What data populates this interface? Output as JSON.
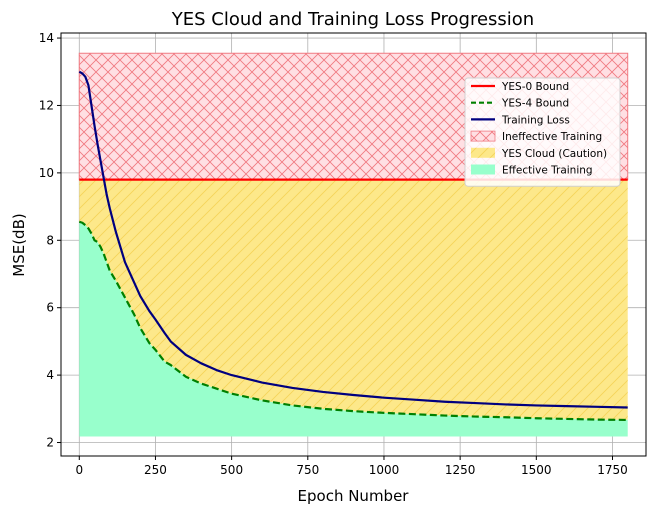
{
  "chart_data": {
    "type": "line",
    "title": "YES Cloud and Training Loss Progression",
    "xlabel": "Epoch Number",
    "ylabel": "MSE(dB)",
    "xlim": [
      -60,
      1860
    ],
    "ylim": [
      1.6,
      14.15
    ],
    "xticks": [
      0,
      250,
      500,
      750,
      1000,
      1250,
      1500,
      1750
    ],
    "yticks": [
      2,
      4,
      6,
      8,
      10,
      12,
      14
    ],
    "grid": true,
    "legend_position": "upper-right",
    "series": [
      {
        "name": "YES-0 Bound",
        "kind": "hline",
        "style": "solid",
        "color": "#ff0000",
        "x": [
          0,
          1800
        ],
        "y": [
          9.8,
          9.8
        ]
      },
      {
        "name": "YES-4 Bound",
        "kind": "line",
        "style": "dashed",
        "color": "#008000",
        "x": [
          0,
          10,
          20,
          30,
          40,
          50,
          60,
          70,
          80,
          90,
          100,
          120,
          150,
          180,
          200,
          230,
          250,
          280,
          300,
          350,
          400,
          450,
          500,
          600,
          700,
          800,
          900,
          1000,
          1100,
          1200,
          1300,
          1400,
          1500,
          1600,
          1700,
          1800
        ],
        "y": [
          8.55,
          8.52,
          8.45,
          8.35,
          8.2,
          8.0,
          7.95,
          7.8,
          7.6,
          7.35,
          7.1,
          6.8,
          6.3,
          5.8,
          5.4,
          4.95,
          4.75,
          4.4,
          4.3,
          3.95,
          3.75,
          3.6,
          3.45,
          3.25,
          3.1,
          3.0,
          2.93,
          2.88,
          2.84,
          2.8,
          2.77,
          2.75,
          2.72,
          2.7,
          2.68,
          2.67
        ]
      },
      {
        "name": "Training Loss",
        "kind": "line",
        "style": "solid",
        "color": "#00007f",
        "x": [
          0,
          10,
          20,
          30,
          40,
          50,
          60,
          70,
          80,
          90,
          100,
          120,
          150,
          180,
          200,
          230,
          250,
          280,
          300,
          350,
          400,
          450,
          500,
          600,
          700,
          800,
          900,
          1000,
          1100,
          1200,
          1300,
          1400,
          1500,
          1600,
          1700,
          1800
        ],
        "y": [
          13.0,
          12.95,
          12.85,
          12.6,
          12.0,
          11.4,
          10.85,
          10.35,
          9.85,
          9.35,
          8.95,
          8.25,
          7.35,
          6.75,
          6.35,
          5.9,
          5.65,
          5.25,
          5.0,
          4.6,
          4.35,
          4.15,
          4.0,
          3.78,
          3.62,
          3.5,
          3.41,
          3.33,
          3.27,
          3.21,
          3.17,
          3.13,
          3.1,
          3.08,
          3.06,
          3.04
        ]
      }
    ],
    "regions": [
      {
        "name": "Ineffective Training",
        "y_range": [
          9.8,
          13.55
        ],
        "x_range": [
          0,
          1800
        ],
        "fill": "#ffdfe3",
        "hatch": "crosshatch",
        "hatch_color": "#f07a82"
      },
      {
        "name": "YES Cloud (Caution)",
        "lower": "YES-4 Bound",
        "upper": 9.8,
        "x_range": [
          0,
          1800
        ],
        "fill": "#fde88a",
        "hatch": "diagonal",
        "hatch_color": "#f5d45a"
      },
      {
        "name": "Effective Training",
        "lower": 2.18,
        "upper": "YES-4 Bound",
        "x_range": [
          0,
          1800
        ],
        "fill": "#98ffcc",
        "hatch": "none"
      }
    ],
    "legend": [
      "YES-0 Bound",
      "YES-4 Bound",
      "Training Loss",
      "Ineffective Training",
      "YES Cloud (Caution)",
      "Effective Training"
    ]
  }
}
